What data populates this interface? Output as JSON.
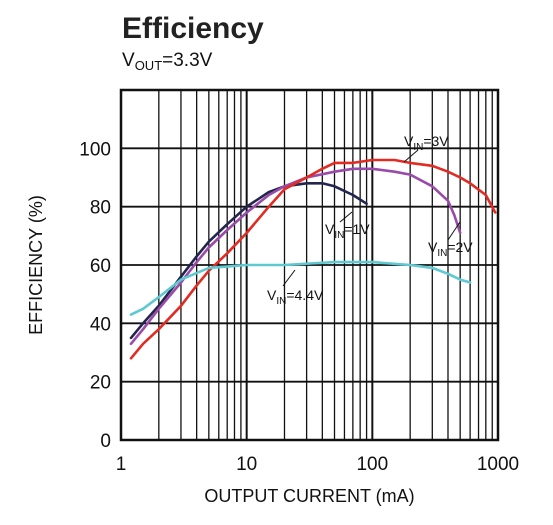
{
  "title": "Efficiency",
  "subtitle": {
    "prefix": "V",
    "sub": "OUT",
    "suffix": "=3.3V"
  },
  "chart_data": {
    "type": "line",
    "title": "Efficiency",
    "subtitle": "VOUT=3.3V",
    "xlabel": "OUTPUT CURRENT (mA)",
    "ylabel": "EFFICIENCY (%)",
    "xscale": "log",
    "xlim": [
      1,
      1000
    ],
    "ylim": [
      0,
      120
    ],
    "grid": true,
    "x_ticks": [
      "1",
      "10",
      "100",
      "1000"
    ],
    "y_ticks": [
      "0",
      "20",
      "40",
      "60",
      "80",
      "100"
    ],
    "colors": {
      "frame": "#111111",
      "grid": "#111111"
    },
    "series": [
      {
        "name": "VIN=1V",
        "label": {
          "prefix": "V",
          "sub": "IN",
          "suffix": "=1V"
        },
        "color": "#22264e",
        "x": [
          1.2,
          1.5,
          2,
          3,
          4,
          5,
          7,
          10,
          15,
          20,
          30,
          40,
          50,
          70,
          90
        ],
        "y": [
          35,
          40,
          46,
          56,
          63,
          68,
          74,
          80,
          85,
          87,
          88,
          88,
          87,
          84,
          81
        ]
      },
      {
        "name": "VIN=2V",
        "label": {
          "prefix": "V",
          "sub": "IN",
          "suffix": "=2V"
        },
        "color": "#9a4aa8",
        "x": [
          1.2,
          1.5,
          2,
          3,
          4,
          5,
          7,
          10,
          15,
          20,
          30,
          50,
          70,
          100,
          150,
          200,
          300,
          400,
          450,
          500
        ],
        "y": [
          33,
          38,
          45,
          54,
          61,
          66,
          72,
          78,
          84,
          87,
          90,
          92,
          93,
          93,
          92,
          91,
          87,
          82,
          77,
          71
        ]
      },
      {
        "name": "VIN=3V",
        "label": {
          "prefix": "V",
          "sub": "IN",
          "suffix": "=3V"
        },
        "color": "#e22b23",
        "x": [
          1.2,
          1.5,
          2,
          3,
          4,
          5,
          7,
          10,
          15,
          20,
          30,
          40,
          50,
          70,
          100,
          150,
          200,
          300,
          400,
          500,
          600,
          800,
          950
        ],
        "y": [
          28,
          33,
          38,
          46,
          53,
          58,
          64,
          71,
          80,
          86,
          90,
          93,
          95,
          95,
          96,
          96,
          95,
          94,
          92,
          90,
          88,
          84,
          78
        ]
      },
      {
        "name": "VIN=4.4V",
        "label": {
          "prefix": "V",
          "sub": "IN",
          "suffix": "=4.4V"
        },
        "color": "#5ec9d1",
        "x": [
          1.2,
          1.5,
          2,
          3,
          5,
          10,
          20,
          50,
          100,
          200,
          300,
          400,
          500,
          600
        ],
        "y": [
          43,
          45,
          49,
          55,
          59,
          60,
          60,
          61,
          61,
          60,
          59,
          57,
          55,
          54
        ]
      }
    ]
  }
}
